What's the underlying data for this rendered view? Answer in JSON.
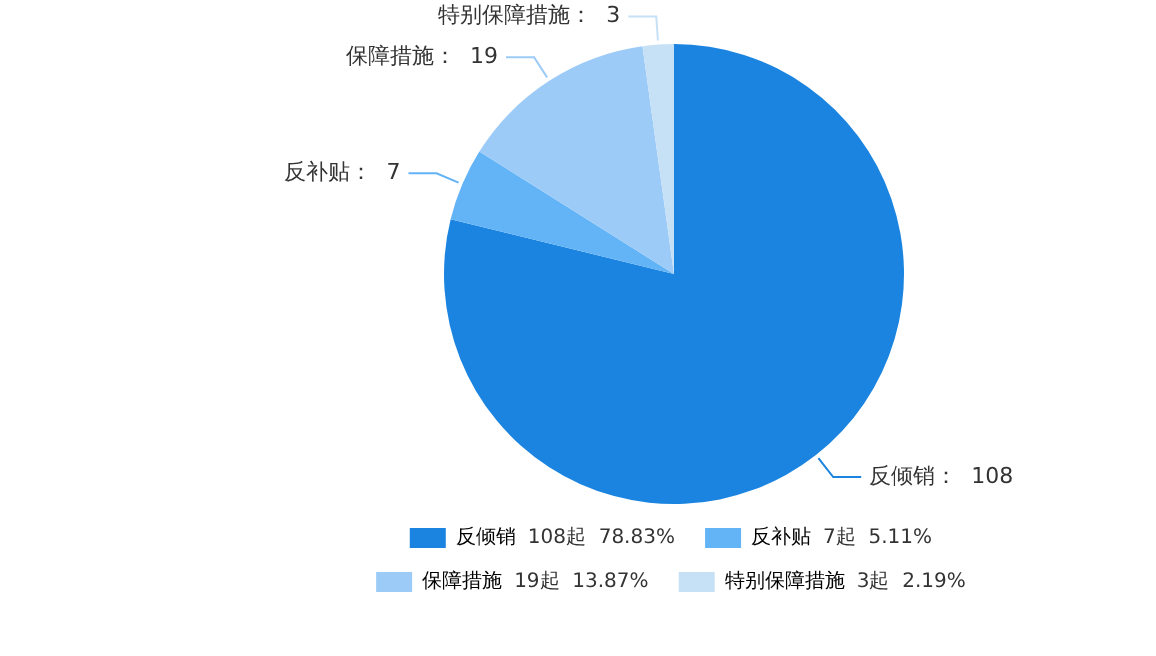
{
  "chart_data": {
    "type": "pie",
    "categories": [
      "反倾销",
      "反补贴",
      "保障措施",
      "特别保障措施"
    ],
    "values": [
      108,
      7,
      19,
      3
    ],
    "colors": [
      "#1a84e0",
      "#63b3f7",
      "#9ccbf8",
      "#c6e0f6"
    ],
    "value_labels": [
      "反倾销：  108",
      "反补贴：  7",
      "保障措施：  19",
      "特别保障措施：  3"
    ],
    "annotations": [
      "108起  78.83%",
      "7起  5.11%",
      "19起  13.87%",
      "3起  2.19%"
    ],
    "legend": "bottom"
  }
}
